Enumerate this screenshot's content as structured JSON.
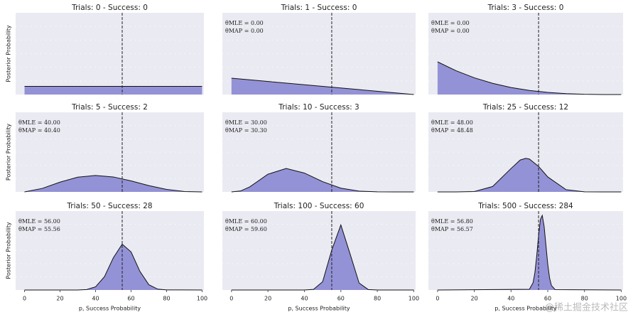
{
  "chart_data": [
    {
      "type": "area",
      "title": "Trials: 0 - Success: 0",
      "ylabel": "Posterior Probability",
      "x": [
        0,
        100
      ],
      "values": [
        1,
        1
      ],
      "xlim": [
        -5,
        101
      ],
      "ylim": [
        0,
        10
      ],
      "vline_x": 55,
      "color": "#8f8dd4"
    },
    {
      "type": "area",
      "title": "Trials: 1 - Success: 0",
      "annotations": [
        "θMLE = 0.00",
        "θMAP = 0.00"
      ],
      "x": [
        0,
        100
      ],
      "values": [
        2,
        0
      ],
      "xlim": [
        -5,
        101
      ],
      "ylim": [
        0,
        10
      ],
      "vline_x": 55,
      "color": "#8f8dd4"
    },
    {
      "type": "area",
      "title": "Trials: 3 - Success: 0",
      "annotations": [
        "θMLE = 0.00",
        "θMAP = 0.00"
      ],
      "x": [
        0,
        10,
        20,
        30,
        40,
        50,
        60,
        70,
        80,
        90,
        100
      ],
      "values": [
        4,
        2.92,
        2.05,
        1.37,
        0.86,
        0.5,
        0.26,
        0.11,
        0.03,
        0.004,
        0
      ],
      "xlim": [
        -5,
        101
      ],
      "ylim": [
        0,
        10
      ],
      "vline_x": 55,
      "color": "#8f8dd4"
    },
    {
      "type": "area",
      "title": "Trials: 5 - Success: 2",
      "ylabel": "Posterior Probability",
      "annotations": [
        "θMLE = 40.00",
        "θMAP = 40.40"
      ],
      "x": [
        0,
        10,
        20,
        30,
        40,
        50,
        60,
        70,
        80,
        90,
        100
      ],
      "values": [
        0,
        0.44,
        1.23,
        1.85,
        2.07,
        1.88,
        1.38,
        0.79,
        0.31,
        0.05,
        0
      ],
      "xlim": [
        -5,
        101
      ],
      "ylim": [
        0,
        10
      ],
      "vline_x": 55,
      "color": "#8f8dd4"
    },
    {
      "type": "area",
      "title": "Trials: 10 - Success: 3",
      "annotations": [
        "θMLE = 30.00",
        "θMAP = 30.30"
      ],
      "x": [
        0,
        5,
        10,
        20,
        30,
        40,
        50,
        60,
        70,
        80,
        90,
        100
      ],
      "values": [
        0,
        0.12,
        0.63,
        2.22,
        2.94,
        2.37,
        1.29,
        0.47,
        0.1,
        0.01,
        0,
        0
      ],
      "xlim": [
        -5,
        101
      ],
      "ylim": [
        0,
        10
      ],
      "vline_x": 55,
      "color": "#8f8dd4"
    },
    {
      "type": "area",
      "title": "Trials: 25 - Success: 12",
      "annotations": [
        "θMLE = 48.00",
        "θMAP = 48.48"
      ],
      "x": [
        0,
        10,
        20,
        30,
        40,
        45,
        48,
        50,
        55,
        60,
        70,
        80,
        90,
        100
      ],
      "values": [
        0,
        0,
        0.05,
        0.68,
        2.94,
        4.01,
        4.22,
        4.13,
        3.21,
        1.88,
        0.28,
        0.01,
        0,
        0
      ],
      "xlim": [
        -5,
        101
      ],
      "ylim": [
        0,
        10
      ],
      "vline_x": 55,
      "color": "#8f8dd4"
    },
    {
      "type": "area",
      "title": "Trials: 50 - Success: 28",
      "ylabel": "Posterior Probability",
      "annotations": [
        "θMLE = 56.00",
        "θMAP = 55.56"
      ],
      "x": [
        0,
        30,
        35,
        40,
        45,
        50,
        55,
        60,
        65,
        70,
        75,
        80,
        100
      ],
      "values": [
        0,
        0.005,
        0.06,
        0.4,
        1.68,
        4.08,
        5.81,
        4.83,
        2.35,
        0.67,
        0.11,
        0.01,
        0
      ],
      "xlim": [
        -5,
        101
      ],
      "ylim": [
        0,
        10
      ],
      "xticks": [
        0,
        20,
        40,
        60,
        80,
        100
      ],
      "xlabel": "p, Success Probability",
      "vline_x": 55,
      "color": "#8f8dd4"
    },
    {
      "type": "area",
      "title": "Trials: 100 - Success: 60",
      "annotations": [
        "θMLE = 60.00",
        "θMAP = 59.60"
      ],
      "x": [
        0,
        40,
        45,
        50,
        55,
        60,
        65,
        70,
        75,
        80,
        100
      ],
      "values": [
        0,
        0,
        0.08,
        1.05,
        5.06,
        8.25,
        4.61,
        0.89,
        0.06,
        0,
        0
      ],
      "xlim": [
        -5,
        101
      ],
      "ylim": [
        0,
        10
      ],
      "xticks": [
        0,
        20,
        40,
        60,
        80,
        100
      ],
      "xlabel": "p, Success Probability",
      "vline_x": 55,
      "color": "#8f8dd4"
    },
    {
      "type": "area",
      "title": "Trials: 500 - Success: 284",
      "annotations": [
        "θMLE = 56.80",
        "θMAP = 56.57"
      ],
      "x": [
        0,
        50,
        52,
        53,
        54,
        55,
        56,
        57,
        58,
        59,
        60,
        61,
        62,
        64,
        100
      ],
      "values": [
        0,
        0.17,
        1.76,
        4.19,
        8.27,
        13.1,
        17,
        17.97,
        15.4,
        10.8,
        6.2,
        2.87,
        1.08,
        0.09,
        0
      ],
      "xlim": [
        -5,
        101
      ],
      "ylim": [
        0,
        19
      ],
      "xticks": [
        0,
        20,
        40,
        60,
        80,
        100
      ],
      "xlabel": "p, Success Probability",
      "vline_x": 55,
      "color": "#8f8dd4"
    }
  ],
  "watermark": "@稀土掘金技术社区"
}
